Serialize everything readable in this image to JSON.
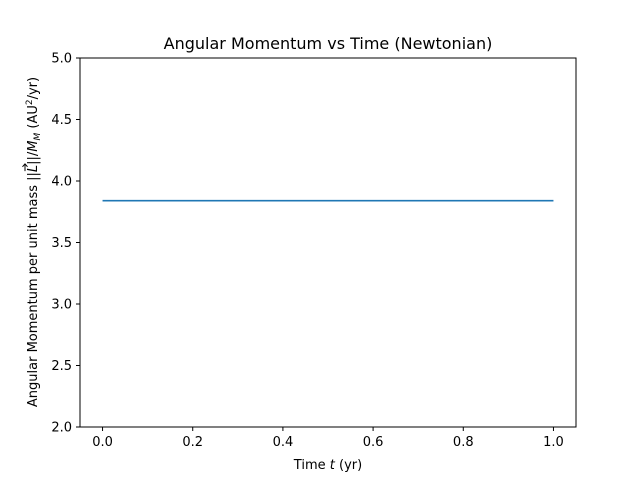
{
  "chart_data": {
    "type": "line",
    "title": "Angular Momentum vs Time (Newtonian)",
    "xlabel": {
      "prefix": "Time ",
      "var": "t",
      "suffix": " (yr)"
    },
    "ylabel": {
      "prefix": "Angular Momentum per unit mass ||",
      "vec": "L",
      "mid": "||/",
      "var": "M",
      "sub": "M",
      "unit_open": " (AU",
      "sup": "2",
      "unit_close": "/yr)"
    },
    "xlim": [
      -0.05,
      1.05
    ],
    "ylim": [
      2.0,
      5.0
    ],
    "xticks": [
      "0.0",
      "0.2",
      "0.4",
      "0.6",
      "0.8",
      "1.0"
    ],
    "yticks": [
      "2.0",
      "2.5",
      "3.0",
      "3.5",
      "4.0",
      "4.5",
      "5.0"
    ],
    "grid": false,
    "series": [
      {
        "color": "#1f77b4",
        "x": [
          0.0,
          1.0
        ],
        "values": [
          3.84,
          3.84
        ]
      }
    ]
  }
}
